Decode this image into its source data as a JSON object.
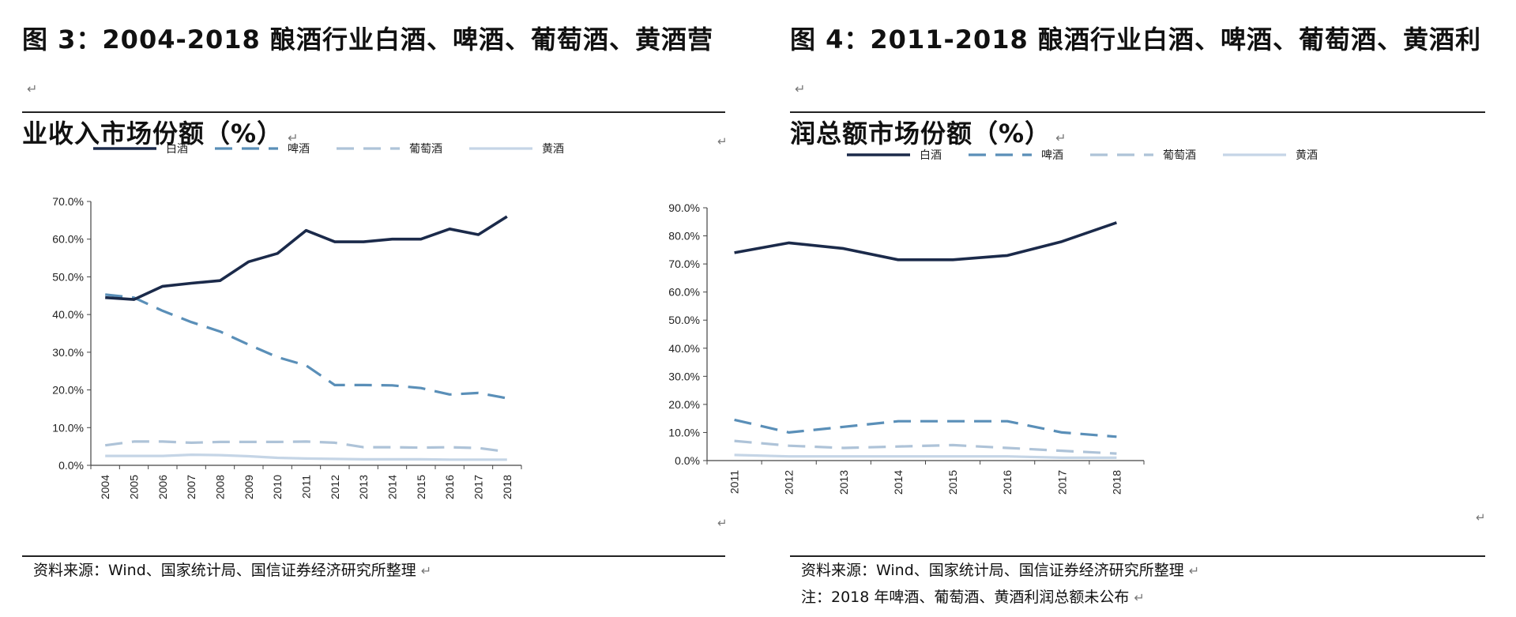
{
  "figure3": {
    "title_line1": "图 3：2004-2018 酿酒行业白酒、啤酒、葡萄酒、黄酒营",
    "title_line2": "业收入市场份额（%）",
    "source": "资料来源：Wind、国家统计局、国信证券经济研究所整理"
  },
  "figure4": {
    "title_line1": "图 4：2011-2018 酿酒行业白酒、啤酒、葡萄酒、黄酒利",
    "title_line2": "润总额市场份额（%）",
    "source": "资料来源：Wind、国家统计局、国信证券经济研究所整理",
    "note": "注：2018 年啤酒、葡萄酒、黄酒利润总额未公布"
  },
  "marks": {
    "para": "↵"
  },
  "chart_data": [
    {
      "type": "line",
      "categories": [
        "2004",
        "2005",
        "2006",
        "2007",
        "2008",
        "2009",
        "2010",
        "2011",
        "2012",
        "2013",
        "2014",
        "2015",
        "2016",
        "2017",
        "2018"
      ],
      "y_ticks": [
        "0.0%",
        "10.0%",
        "20.0%",
        "30.0%",
        "40.0%",
        "50.0%",
        "60.0%",
        "70.0%"
      ],
      "ylim": [
        0,
        70
      ],
      "series": [
        {
          "name": "白酒",
          "color": "#1b2a4a",
          "style": "solid",
          "values": [
            44.5,
            44,
            47.5,
            48.3,
            49,
            54,
            56.2,
            62.3,
            59.3,
            59.3,
            60,
            60,
            62.7,
            61.2,
            66
          ]
        },
        {
          "name": "啤酒",
          "color": "#5a8fb8",
          "style": "dash",
          "values": [
            45.3,
            44.5,
            41,
            38,
            35.5,
            32,
            28.7,
            26.5,
            21.3,
            21.3,
            21.2,
            20.5,
            18.8,
            19.2,
            17.8
          ]
        },
        {
          "name": "葡萄酒",
          "color": "#aec3d8",
          "style": "dash",
          "values": [
            5.3,
            6.3,
            6.3,
            6,
            6.2,
            6.2,
            6.2,
            6.3,
            6,
            4.8,
            4.8,
            4.7,
            4.8,
            4.6,
            3.6
          ]
        },
        {
          "name": "黄酒",
          "color": "#c5d5e6",
          "style": "solid",
          "values": [
            2.5,
            2.5,
            2.5,
            2.8,
            2.7,
            2.4,
            2,
            1.8,
            1.7,
            1.6,
            1.6,
            1.6,
            1.5,
            1.5,
            1.5
          ]
        }
      ]
    },
    {
      "type": "line",
      "categories": [
        "2011",
        "2012",
        "2013",
        "2014",
        "2015",
        "2016",
        "2017",
        "2018"
      ],
      "y_ticks": [
        "0.0%",
        "10.0%",
        "20.0%",
        "30.0%",
        "40.0%",
        "50.0%",
        "60.0%",
        "70.0%",
        "80.0%",
        "90.0%"
      ],
      "ylim": [
        0,
        90
      ],
      "series": [
        {
          "name": "白酒",
          "color": "#1b2a4a",
          "style": "solid",
          "values": [
            74,
            77.5,
            75.5,
            71.5,
            71.5,
            73,
            78,
            84.7
          ]
        },
        {
          "name": "啤酒",
          "color": "#5a8fb8",
          "style": "dash",
          "values": [
            14.5,
            10,
            12,
            14,
            14,
            14,
            10,
            8.5
          ]
        },
        {
          "name": "葡萄酒",
          "color": "#aec3d8",
          "style": "dash",
          "values": [
            7,
            5.3,
            4.5,
            5,
            5.5,
            4.5,
            3.5,
            2.5
          ]
        },
        {
          "name": "黄酒",
          "color": "#c5d5e6",
          "style": "solid",
          "values": [
            2,
            1.5,
            1.5,
            1.5,
            1.5,
            1.5,
            1,
            1
          ]
        }
      ]
    }
  ]
}
